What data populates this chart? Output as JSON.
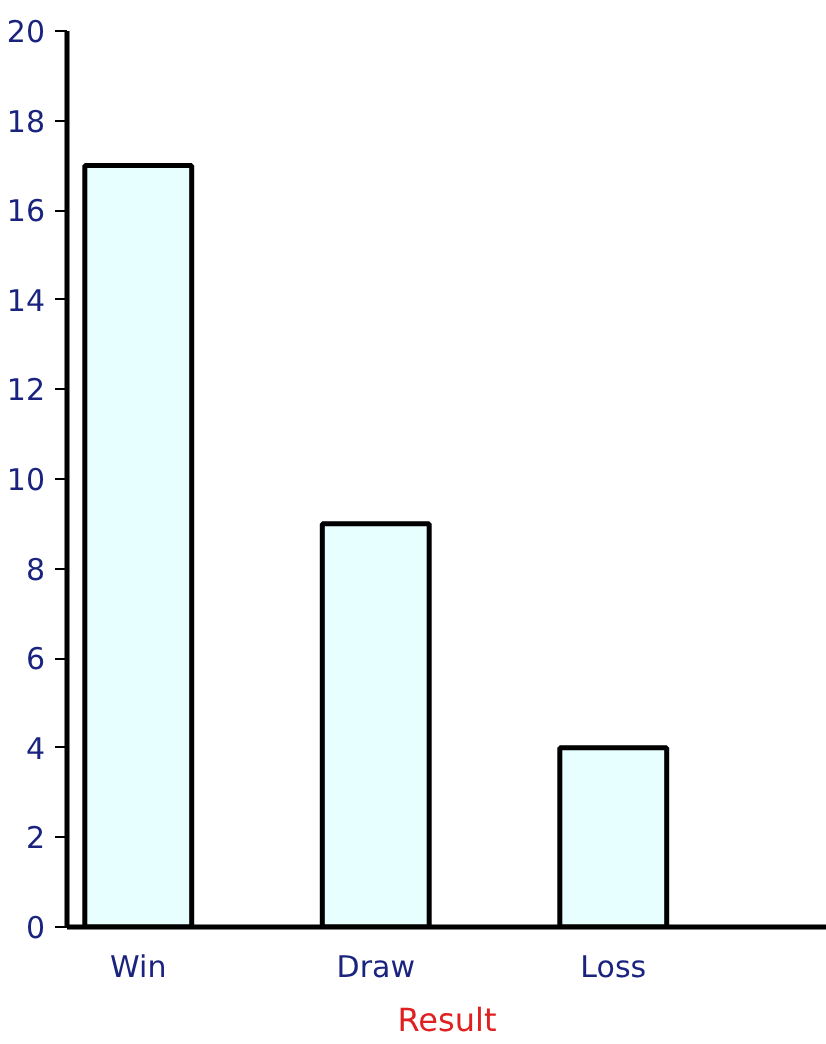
{
  "chart_data": {
    "type": "bar",
    "xlabel": "Result",
    "categories": [
      "Win",
      "Draw",
      "Loss"
    ],
    "values": [
      17,
      9,
      4
    ],
    "color": "#e8ffff",
    "ylim": [
      0,
      20
    ],
    "yticks": [
      0,
      2,
      4,
      6,
      8,
      10,
      12,
      14,
      16,
      18,
      20
    ],
    "grid": false
  }
}
